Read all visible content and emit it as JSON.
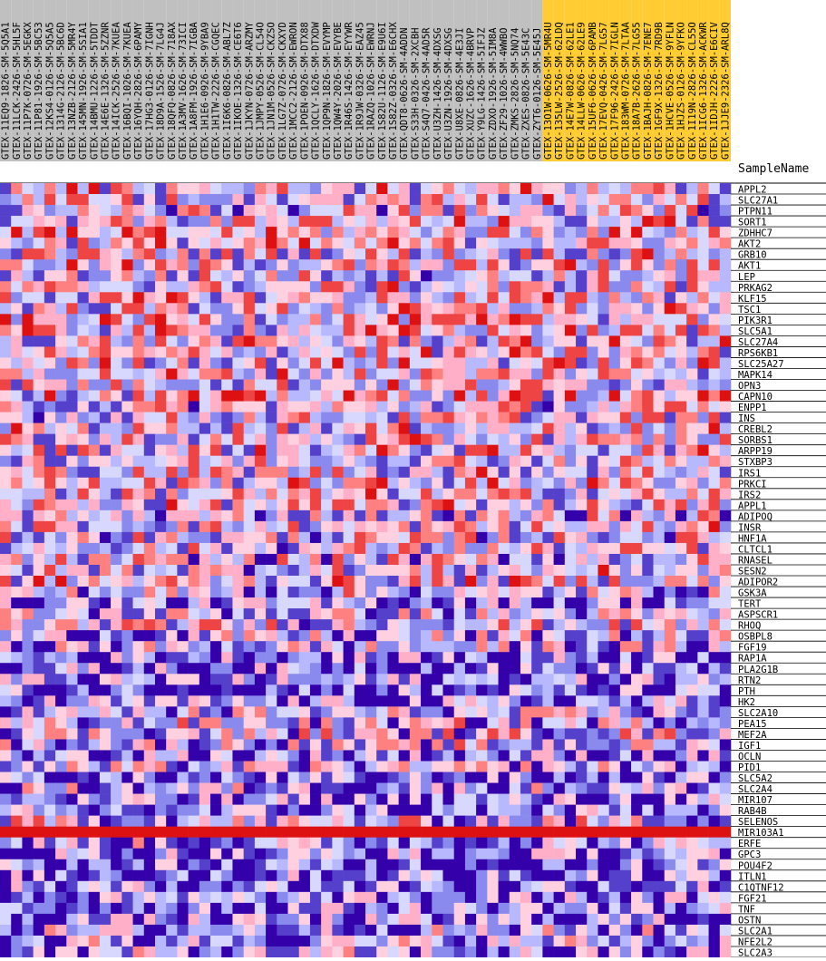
{
  "chart_data": {
    "type": "heatmap",
    "column_header": "SampleName",
    "samples": [
      {
        "name": "GTEX-11EQ9-1826-SM-5Q5A1",
        "group": "gray"
      },
      {
        "name": "GTEX-11LCK-2426-SM-5HL5F",
        "group": "gray"
      },
      {
        "name": "GTEX-11P7K-0726-SM-5EGKX",
        "group": "gray"
      },
      {
        "name": "GTEX-11P81-1926-SM-5BC53",
        "group": "gray"
      },
      {
        "name": "GTEX-12KS4-0126-SM-5Q5A5",
        "group": "gray"
      },
      {
        "name": "GTEX-1314G-2126-SM-5BC6D",
        "group": "gray"
      },
      {
        "name": "GTEX-13NZB-2126-SM-5MR4Y",
        "group": "gray"
      },
      {
        "name": "GTEX-145MN-1926-SM-5SIA1",
        "group": "gray"
      },
      {
        "name": "GTEX-14BMU-1226-SM-5TDDT",
        "group": "gray"
      },
      {
        "name": "GTEX-14E6E-1326-SM-5ZZNR",
        "group": "gray"
      },
      {
        "name": "GTEX-14ICK-2526-SM-7KUEA",
        "group": "gray"
      },
      {
        "name": "GTEX-16BQI-1026-SM-7KUEA",
        "group": "gray"
      },
      {
        "name": "GTEX-16YQH-2826-SM-6PAMY",
        "group": "gray"
      },
      {
        "name": "GTEX-17HG3-0126-SM-7IGNH",
        "group": "gray"
      },
      {
        "name": "GTEX-18D9A-1526-SM-7LG4J",
        "group": "gray"
      },
      {
        "name": "GTEX-18QFQ-0826-SM-718AX",
        "group": "gray"
      },
      {
        "name": "GTEX-1A3MV-1626-SM-73ICI",
        "group": "gray"
      },
      {
        "name": "GTEX-1A8FM-1926-SM-7IGBA",
        "group": "gray"
      },
      {
        "name": "GTEX-1H1E6-0926-SM-9YBA9",
        "group": "gray"
      },
      {
        "name": "GTEX-1H1TW-2226-SM-CGQEC",
        "group": "gray"
      },
      {
        "name": "GTEX-1I6K6-0826-SM-ABL7Z",
        "group": "gray"
      },
      {
        "name": "GTEX-1IKOE-1326-SM-CE6T6",
        "group": "gray"
      },
      {
        "name": "GTEX-1JKYN-0726-SM-ARZMY",
        "group": "gray"
      },
      {
        "name": "GTEX-1JMPY-0526-SM-CL54O",
        "group": "gray"
      },
      {
        "name": "GTEX-1JN1M-0526-SM-CKZSO",
        "group": "gray"
      },
      {
        "name": "GTEX-1LG7Z-0726-SM-CKXYD",
        "group": "gray"
      },
      {
        "name": "GTEX-1MCC2-2126-SM-EWRON",
        "group": "gray"
      },
      {
        "name": "GTEX-1POEN-0926-SM-DTX88",
        "group": "gray"
      },
      {
        "name": "GTEX-1QCLY-1626-SM-DTXDW",
        "group": "gray"
      },
      {
        "name": "GTEX-1QP9N-1826-SM-EVYMP",
        "group": "gray"
      },
      {
        "name": "GTEX-1QW4Y-2026-SM-EVYBE",
        "group": "gray"
      },
      {
        "name": "GTEX-1R46S-1426-SM-EYYWR",
        "group": "gray"
      },
      {
        "name": "GTEX-1R9JW-0326-SM-EAZ45",
        "group": "gray"
      },
      {
        "name": "GTEX-1RAZQ-1026-SM-EWRNJ",
        "group": "gray"
      },
      {
        "name": "GTEX-1S82U-1126-SM-E9U6I",
        "group": "gray"
      },
      {
        "name": "GTEX-1S82Z-0326-SM-E6CHX",
        "group": "gray"
      },
      {
        "name": "GTEX-QDT8-0626-SM-4ADDN",
        "group": "gray"
      },
      {
        "name": "GTEX-S33H-0326-SM-2XCBH",
        "group": "gray"
      },
      {
        "name": "GTEX-S4Q7-0426-SM-4AD5R",
        "group": "gray"
      },
      {
        "name": "GTEX-U3ZH-1426-SM-4DXSG",
        "group": "gray"
      },
      {
        "name": "GTEX-U3ZN-1926-SM-4DXSG",
        "group": "gray"
      },
      {
        "name": "GTEX-U8XE-0826-SM-4E3JI",
        "group": "gray"
      },
      {
        "name": "GTEX-XUZC-1626-SM-4BRVP",
        "group": "gray"
      },
      {
        "name": "GTEX-Y9LG-1426-SM-5IFJZ",
        "group": "gray"
      },
      {
        "name": "GTEX-ZDXO-1926-SM-5IM8A",
        "group": "gray"
      },
      {
        "name": "GTEX-ZF29-1026-SM-4WWBO",
        "group": "gray"
      },
      {
        "name": "GTEX-ZMKS-2826-SM-5NQ74",
        "group": "gray"
      },
      {
        "name": "GTEX-ZXES-0826-SM-5E43C",
        "group": "gray"
      },
      {
        "name": "GTEX-ZYT6-0126-SM-5E45J",
        "group": "gray"
      },
      {
        "name": "GTEX-13O1W-0626-SM-5MR4U",
        "group": "gold"
      },
      {
        "name": "GTEX-135LW-2526-SM-62LDQ",
        "group": "gold"
      },
      {
        "name": "GTEX-14E7W-0826-SM-62LE1",
        "group": "gold"
      },
      {
        "name": "GTEX-14LLW-0626-SM-62LE9",
        "group": "gold"
      },
      {
        "name": "GTEX-15UF6-0626-SM-6PAMB",
        "group": "gold"
      },
      {
        "name": "GTEX-17EVQ-0426-SM-7LG57",
        "group": "gold"
      },
      {
        "name": "GTEX-17F96-2426-SM-7IGLN",
        "group": "gold"
      },
      {
        "name": "GTEX-183WM-0726-SM-7LTAA",
        "group": "gold"
      },
      {
        "name": "GTEX-18A7B-2626-SM-7LG55",
        "group": "gold"
      },
      {
        "name": "GTEX-1BAJH-0826-SM-7ENE7",
        "group": "gold"
      },
      {
        "name": "GTEX-1GF9X-1326-SM-7RD9B",
        "group": "gold"
      },
      {
        "name": "GTEX-1HCVE-0526-SM-9YFLN",
        "group": "gold"
      },
      {
        "name": "GTEX-1HJZS-0126-SM-9YFKO",
        "group": "gold"
      },
      {
        "name": "GTEX-1I19N-2826-SM-CL55O",
        "group": "gold"
      },
      {
        "name": "GTEX-1ICG6-1326-SM-ACKWR",
        "group": "gold"
      },
      {
        "name": "GTEX-1IDJH-2226-SM-E6CIV",
        "group": "gold"
      },
      {
        "name": "GTEX-1JJE9-2326-SM-ARL8Q",
        "group": "gold"
      }
    ],
    "genes": [
      "APPL2",
      "SLC27A1",
      "PTPN11",
      "SORT1",
      "ZDHHC7",
      "AKT2",
      "GRB10",
      "AKT1",
      "LEP",
      "PRKAG2",
      "KLF15",
      "TSC1",
      "PIK3R1",
      "SLC5A1",
      "SLC27A4",
      "RPS6KB1",
      "SLC25A27",
      "MAPK14",
      "OPN3",
      "CAPN10",
      "ENPP1",
      "INS",
      "CREBL2",
      "SORBS1",
      "ARPP19",
      "STXBP3",
      "IRS1",
      "PRKCI",
      "IRS2",
      "APPL1",
      "ADIPOQ",
      "INSR",
      "HNF1A",
      "CLTCL1",
      "RNASEL",
      "SESN2",
      "ADIPOR2",
      "GSK3A",
      "TERT",
      "ASPSCR1",
      "RHOQ",
      "OSBPL8",
      "FGF19",
      "RAP1A",
      "PLA2G1B",
      "RTN2",
      "PTH",
      "HK2",
      "SLC2A10",
      "PEA15",
      "MEF2A",
      "IGF1",
      "OCLN",
      "PID1",
      "SLC5A2",
      "SLC2A4",
      "MIR107",
      "RAB4B",
      "SELENOS",
      "MIR103A1",
      "ERFE",
      "GPC3",
      "POU4F2",
      "ITLN1",
      "C1QTNF12",
      "FGF21",
      "TNF",
      "OSTN",
      "SLC2A1",
      "NFE2L2",
      "SLC2A3"
    ],
    "row_bias": [
      0.1,
      0.05,
      -0.1,
      0.05,
      0.15,
      0.1,
      0.05,
      0.05,
      -0.05,
      0.0,
      0.1,
      0.05,
      0.2,
      0.1,
      0.05,
      0.05,
      0.1,
      0.15,
      0.05,
      0.2,
      -0.05,
      0.0,
      0.05,
      0.0,
      0.05,
      0.05,
      0.05,
      0.1,
      0.05,
      0.05,
      -0.1,
      0.0,
      -0.1,
      -0.05,
      -0.1,
      0.0,
      0.1,
      -0.2,
      -0.45,
      -0.2,
      0.0,
      -0.3,
      -0.25,
      -0.5,
      -0.6,
      -0.45,
      -0.75,
      -0.5,
      -0.3,
      -0.2,
      -0.1,
      -0.2,
      -0.4,
      -0.25,
      -0.7,
      -0.3,
      -0.5,
      -0.6,
      -0.15,
      1.2,
      -0.4,
      -0.5,
      -0.7,
      -0.5,
      -0.45,
      -0.55,
      -0.5,
      -0.5,
      -0.35,
      -0.3,
      -0.4
    ],
    "color_scale": {
      "low": "#3300aa",
      "mid_low": "#b8b8ff",
      "mid": "#ffffff",
      "mid_high": "#ffb0c8",
      "high": "#dd1111"
    },
    "group_colors": {
      "gray": "#c0c0c0",
      "gold": "#ffcc33"
    }
  }
}
